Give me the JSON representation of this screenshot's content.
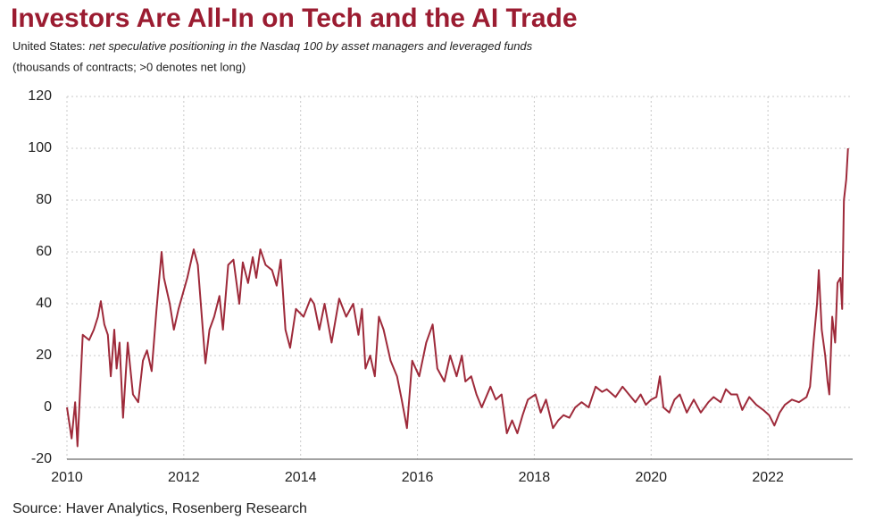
{
  "chart_data": {
    "type": "line",
    "title": "Investors Are All-In on Tech and the AI Trade",
    "subtitle_region": "United States:",
    "subtitle": "net speculative positioning in the Nasdaq 100 by asset managers and leveraged funds",
    "note": "(thousands of contracts; >0 denotes net long)",
    "source": "Source: Haver Analytics, Rosenberg Research",
    "color": "#9e2a3a",
    "grid": true,
    "xlim": [
      2010,
      2023.45
    ],
    "xticks": [
      2010,
      2012,
      2014,
      2016,
      2018,
      2020,
      2022
    ],
    "ylim": [
      -20,
      120
    ],
    "yticks": [
      -20,
      0,
      20,
      40,
      60,
      80,
      100,
      120
    ],
    "x": [
      2010.0,
      2010.08,
      2010.14,
      2010.18,
      2010.27,
      2010.38,
      2010.46,
      2010.53,
      2010.58,
      2010.64,
      2010.7,
      2010.75,
      2010.81,
      2010.85,
      2010.9,
      2010.96,
      2011.04,
      2011.13,
      2011.22,
      2011.3,
      2011.37,
      2011.45,
      2011.53,
      2011.62,
      2011.66,
      2011.76,
      2011.83,
      2011.91,
      2012.06,
      2012.17,
      2012.24,
      2012.37,
      2012.44,
      2012.52,
      2012.61,
      2012.67,
      2012.76,
      2012.85,
      2012.95,
      2013.01,
      2013.1,
      2013.18,
      2013.24,
      2013.31,
      2013.4,
      2013.51,
      2013.59,
      2013.66,
      2013.74,
      2013.82,
      2013.92,
      2014.05,
      2014.17,
      2014.23,
      2014.32,
      2014.41,
      2014.53,
      2014.66,
      2014.78,
      2014.9,
      2014.99,
      2015.05,
      2015.11,
      2015.19,
      2015.27,
      2015.34,
      2015.42,
      2015.54,
      2015.65,
      2015.73,
      2015.82,
      2015.91,
      2016.03,
      2016.15,
      2016.26,
      2016.34,
      2016.46,
      2016.56,
      2016.67,
      2016.76,
      2016.82,
      2016.92,
      2017.01,
      2017.1,
      2017.25,
      2017.34,
      2017.44,
      2017.53,
      2017.62,
      2017.71,
      2017.8,
      2017.89,
      2018.02,
      2018.11,
      2018.2,
      2018.32,
      2018.41,
      2018.5,
      2018.6,
      2018.7,
      2018.81,
      2018.93,
      2019.05,
      2019.16,
      2019.24,
      2019.39,
      2019.51,
      2019.62,
      2019.73,
      2019.82,
      2019.91,
      2020.0,
      2020.09,
      2020.15,
      2020.21,
      2020.31,
      2020.4,
      2020.49,
      2020.61,
      2020.73,
      2020.85,
      2020.98,
      2021.07,
      2021.19,
      2021.28,
      2021.37,
      2021.47,
      2021.56,
      2021.68,
      2021.8,
      2021.92,
      2022.02,
      2022.11,
      2022.2,
      2022.29,
      2022.41,
      2022.53,
      2022.66,
      2022.72,
      2022.78,
      2022.84,
      2022.87,
      2022.92,
      2022.98,
      2023.02,
      2023.05,
      2023.1,
      2023.15,
      2023.19,
      2023.24,
      2023.27,
      2023.3,
      2023.34,
      2023.37
    ],
    "values": [
      0,
      -12,
      2,
      -15,
      28,
      26,
      30,
      35,
      41,
      32,
      28,
      12,
      30,
      15,
      25,
      -4,
      25,
      5,
      2,
      18,
      22,
      14,
      37,
      60,
      50,
      40,
      30,
      38,
      50,
      61,
      55,
      17,
      30,
      35,
      43,
      30,
      55,
      57,
      40,
      56,
      48,
      58,
      50,
      61,
      55,
      53,
      47,
      57,
      30,
      23,
      38,
      35,
      42,
      40,
      30,
      40,
      25,
      42,
      35,
      40,
      28,
      38,
      15,
      20,
      12,
      35,
      30,
      18,
      12,
      3,
      -8,
      18,
      12,
      25,
      32,
      15,
      10,
      20,
      12,
      20,
      10,
      12,
      5,
      0,
      8,
      3,
      5,
      -10,
      -5,
      -10,
      -3,
      3,
      5,
      -2,
      3,
      -8,
      -5,
      -3,
      -4,
      0,
      2,
      0,
      8,
      6,
      7,
      4,
      8,
      5,
      2,
      5,
      1,
      3,
      4,
      12,
      0,
      -2,
      3,
      5,
      -2,
      3,
      -2,
      2,
      4,
      2,
      7,
      5,
      5,
      -1,
      4,
      1,
      -1,
      -3,
      -7,
      -2,
      1,
      3,
      2,
      4,
      8,
      25,
      40,
      53,
      30,
      20,
      10,
      5,
      35,
      25,
      48,
      50,
      38,
      80,
      88,
      100
    ]
  }
}
